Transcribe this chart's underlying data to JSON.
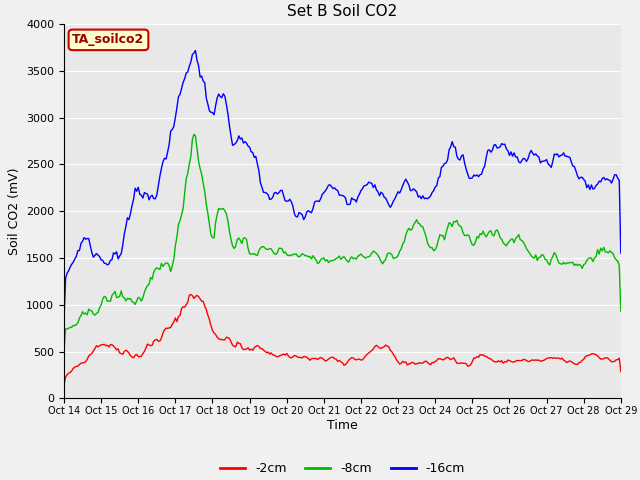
{
  "title": "Set B Soil CO2",
  "ylabel": "Soil CO2 (mV)",
  "xlabel": "Time",
  "ylim": [
    0,
    4000
  ],
  "xlim": [
    0,
    360
  ],
  "tick_labels": [
    "Oct 14",
    "Oct 15",
    "Oct 16",
    "Oct 17",
    "Oct 18",
    "Oct 19",
    "Oct 20",
    "Oct 21",
    "Oct 22",
    "Oct 23",
    "Oct 24",
    "Oct 25",
    "Oct 26",
    "Oct 27",
    "Oct 28",
    "Oct 29"
  ],
  "tick_positions": [
    0,
    24,
    48,
    72,
    96,
    120,
    144,
    168,
    192,
    216,
    240,
    264,
    288,
    312,
    336,
    360
  ],
  "line_colors": [
    "#ff0000",
    "#00bb00",
    "#0000ff"
  ],
  "line_labels": [
    "-2cm",
    "-8cm",
    "-16cm"
  ],
  "background_color": "#e8e8e8",
  "fig_background": "#f0f0f0",
  "annotation_text": "TA_soilco2",
  "annotation_bg": "#ffffcc",
  "annotation_border": "#cc0000",
  "title_fontsize": 11,
  "axis_fontsize": 9,
  "tick_fontsize": 8,
  "legend_fontsize": 9,
  "yticks": [
    0,
    500,
    1000,
    1500,
    2000,
    2500,
    3000,
    3500,
    4000
  ]
}
